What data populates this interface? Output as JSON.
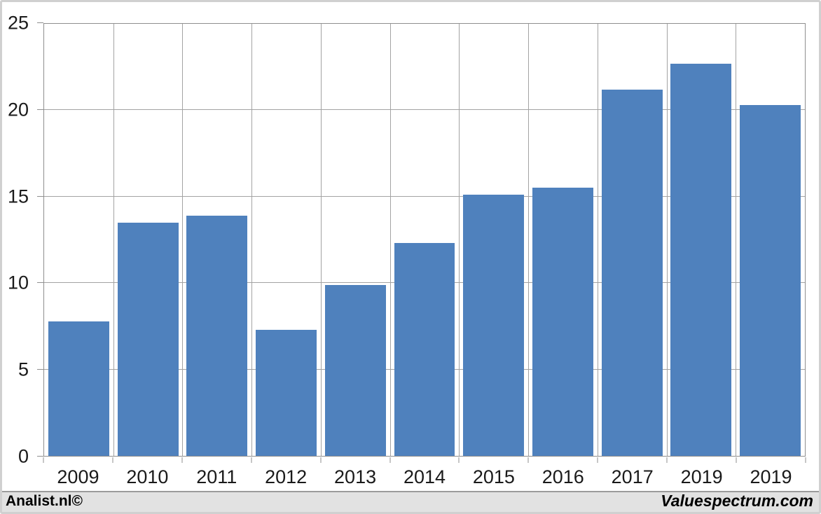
{
  "chart_data": {
    "type": "bar",
    "categories": [
      "2009",
      "2010",
      "2011",
      "2012",
      "2013",
      "2014",
      "2015",
      "2016",
      "2017",
      "2019",
      "2019"
    ],
    "values": [
      7.8,
      13.5,
      13.9,
      7.3,
      9.9,
      12.3,
      15.1,
      15.5,
      21.2,
      22.7,
      20.3
    ],
    "title": "",
    "xlabel": "",
    "ylabel": "",
    "ylim": [
      0,
      25
    ],
    "yticks": [
      0,
      5,
      10,
      15,
      20,
      25
    ],
    "grid": true,
    "legend": false,
    "bar_color": "#4f81bd"
  },
  "footer": {
    "left_text": "Analist.nl©",
    "right_text": "Valuespectrum.com"
  },
  "colors": {
    "bar": "#4f81bd",
    "gridline": "#a3a3a3",
    "plot_border": "#8f8f8f",
    "background": "#ffffff",
    "footer_bg": "#e2e2e2",
    "frame_border": "#d0d0d0",
    "text": "#1a1a1a"
  }
}
